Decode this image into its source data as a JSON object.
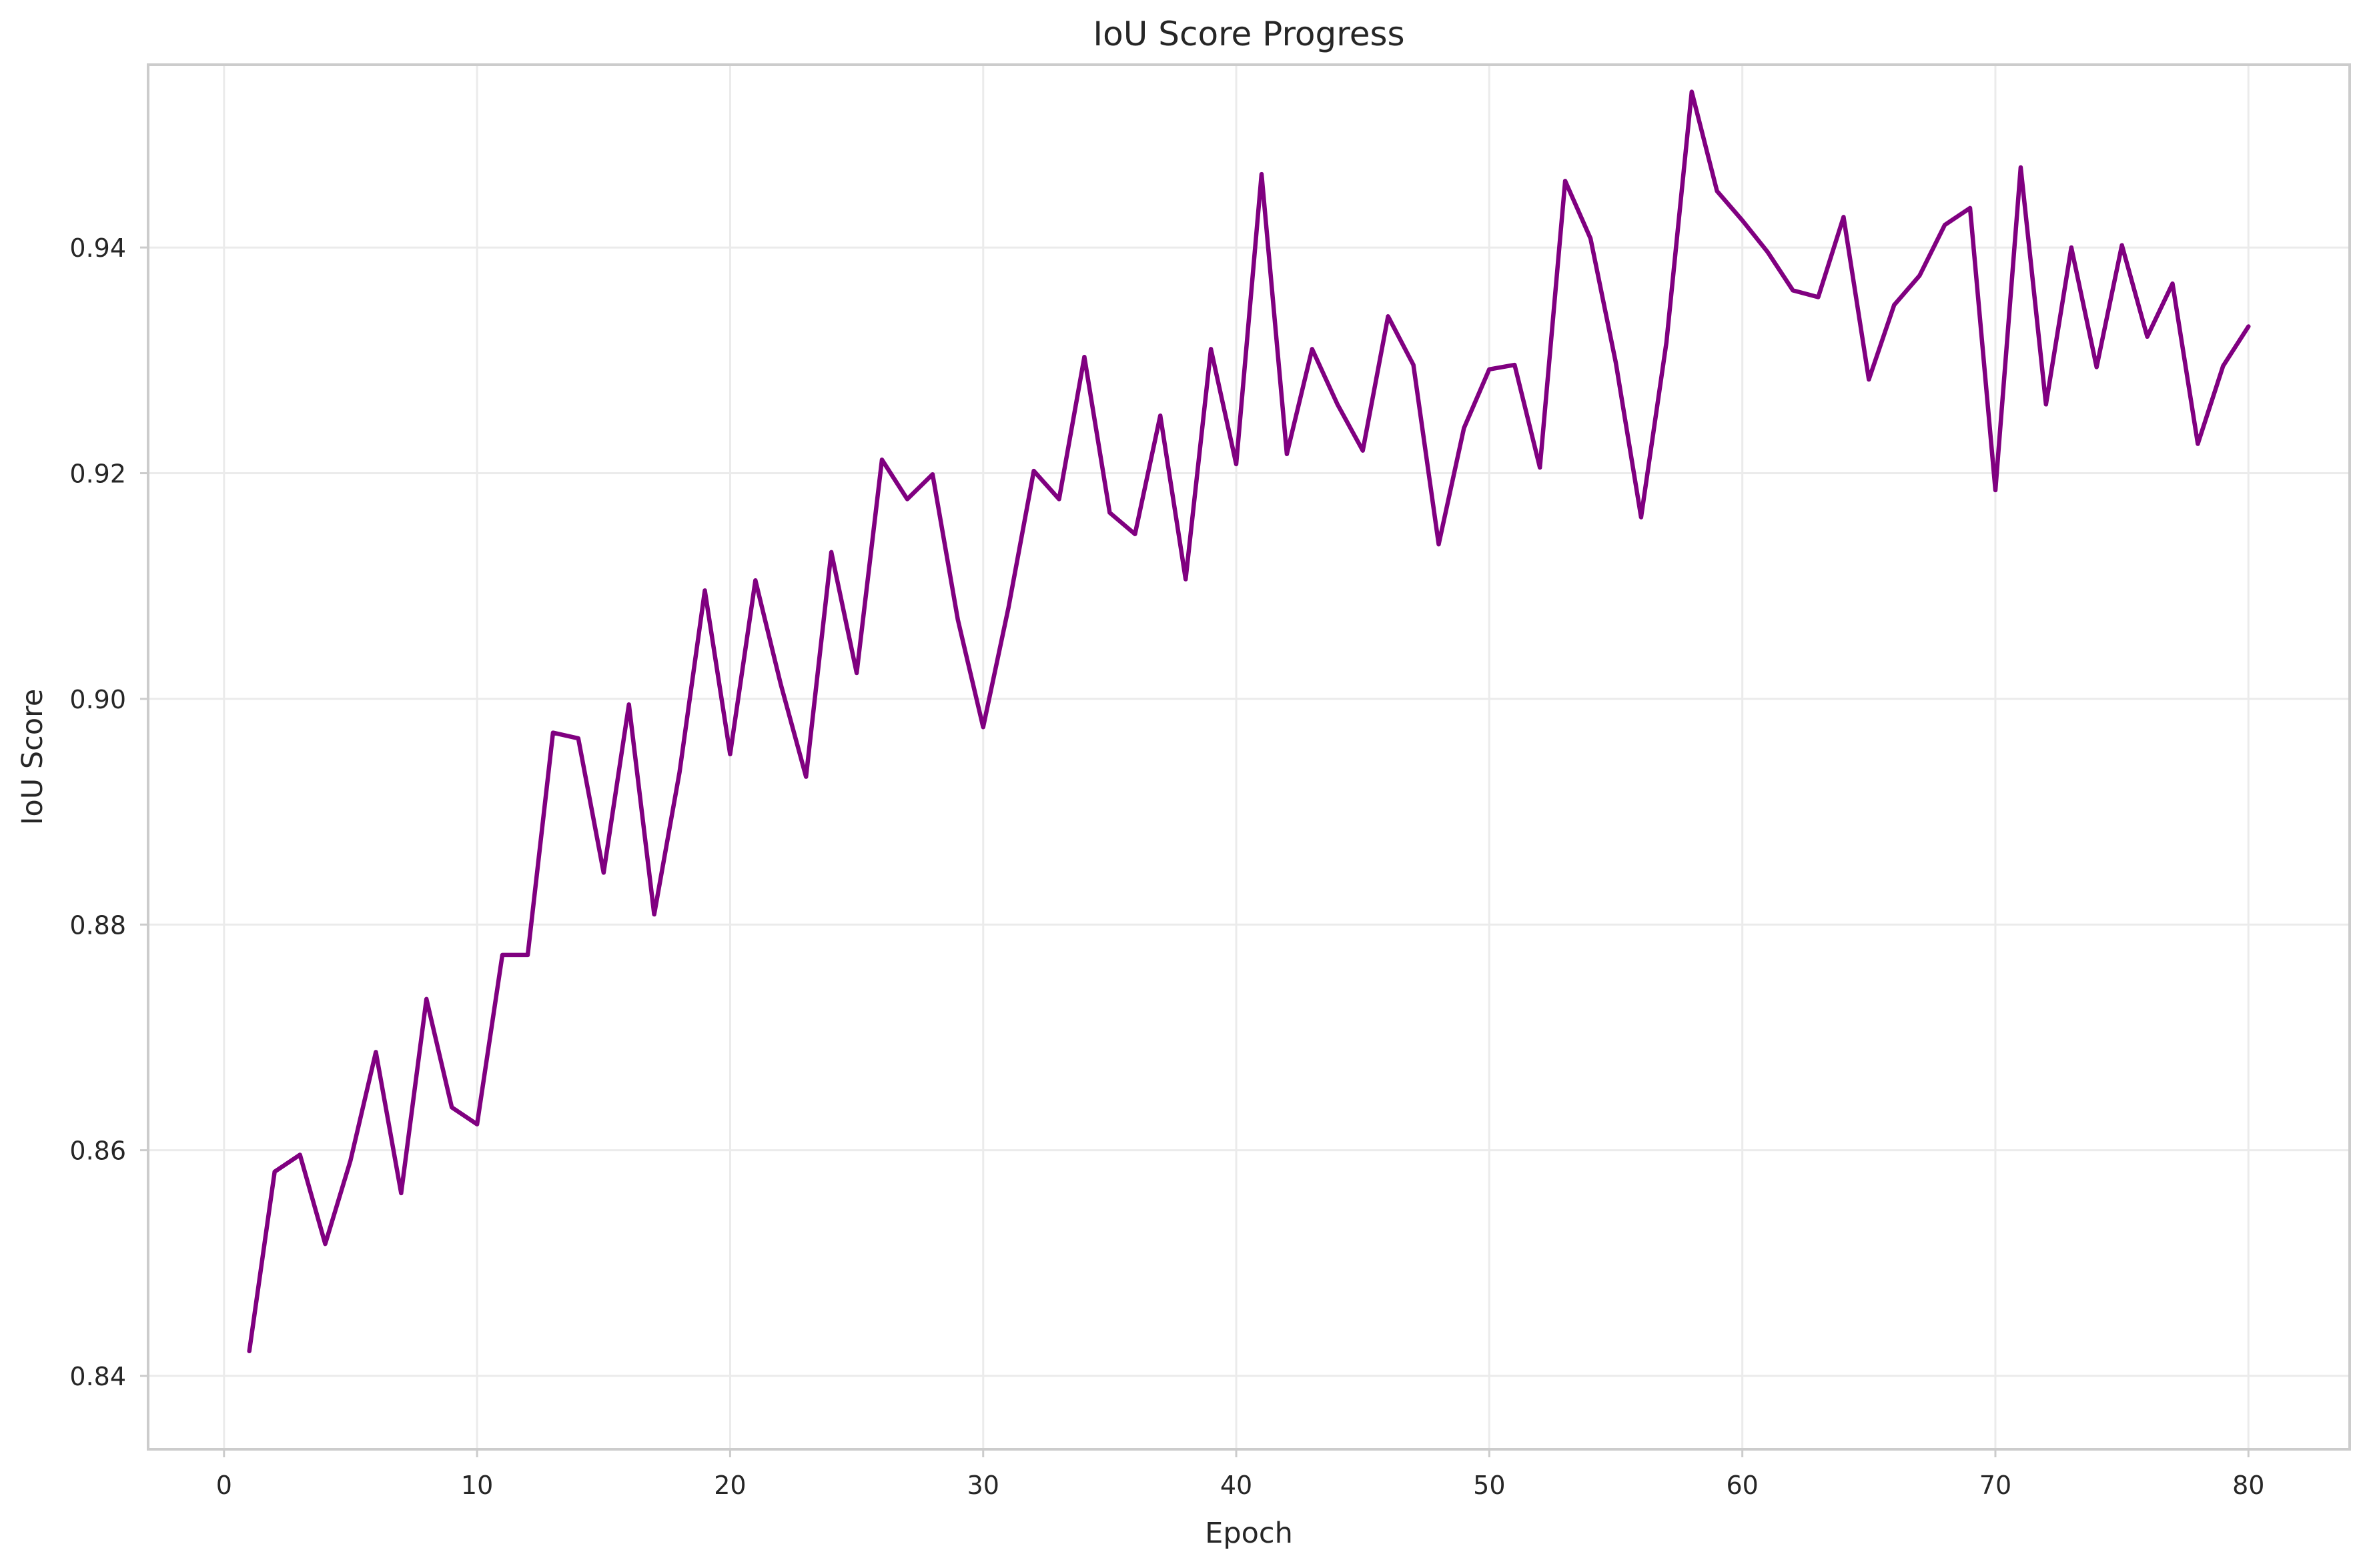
{
  "chart_data": {
    "type": "line",
    "title": "IoU Score Progress",
    "xlabel": "Epoch",
    "ylabel": "IoU Score",
    "xlim": [
      -3,
      84
    ],
    "ylim": [
      0.8335,
      0.9562
    ],
    "xticks": [
      0,
      10,
      20,
      30,
      40,
      50,
      60,
      70,
      80
    ],
    "xtick_labels": [
      "0",
      "10",
      "20",
      "30",
      "40",
      "50",
      "60",
      "70",
      "80"
    ],
    "yticks": [
      0.84,
      0.86,
      0.88,
      0.9,
      0.92,
      0.94
    ],
    "ytick_labels": [
      "0.84",
      "0.86",
      "0.88",
      "0.90",
      "0.92",
      "0.94"
    ],
    "grid": true,
    "legend": false,
    "series": [
      {
        "name": "IoU Score",
        "color": "#800080",
        "x": [
          1,
          2,
          3,
          4,
          5,
          6,
          7,
          8,
          9,
          10,
          11,
          12,
          13,
          14,
          15,
          16,
          17,
          18,
          19,
          20,
          21,
          22,
          23,
          24,
          25,
          26,
          27,
          28,
          29,
          30,
          31,
          32,
          33,
          34,
          35,
          36,
          37,
          38,
          39,
          40,
          41,
          42,
          43,
          44,
          45,
          46,
          47,
          48,
          49,
          50,
          51,
          52,
          53,
          54,
          55,
          56,
          57,
          58,
          59,
          60,
          61,
          62,
          63,
          64,
          65,
          66,
          67,
          68,
          69,
          70,
          71,
          72,
          73,
          74,
          75,
          76,
          77,
          78,
          79,
          80
        ],
        "values": [
          0.8422,
          0.8581,
          0.8596,
          0.8517,
          0.8591,
          0.8687,
          0.8562,
          0.8734,
          0.8638,
          0.8623,
          0.8773,
          0.8773,
          0.897,
          0.8965,
          0.8846,
          0.8995,
          0.8809,
          0.8935,
          0.9096,
          0.8951,
          0.9105,
          0.9013,
          0.8931,
          0.913,
          0.9023,
          0.9212,
          0.9177,
          0.9199,
          0.907,
          0.8975,
          0.9081,
          0.9202,
          0.9177,
          0.9303,
          0.9165,
          0.9146,
          0.9251,
          0.9106,
          0.931,
          0.9208,
          0.9465,
          0.9217,
          0.931,
          0.9261,
          0.922,
          0.9339,
          0.9296,
          0.9137,
          0.924,
          0.9292,
          0.9296,
          0.9205,
          0.9459,
          0.9408,
          0.9298,
          0.9161,
          0.9316,
          0.9538,
          0.945,
          0.9424,
          0.9396,
          0.9362,
          0.9356,
          0.9427,
          0.9283,
          0.9349,
          0.9375,
          0.942,
          0.9435,
          0.9185,
          0.9471,
          0.9261,
          0.94,
          0.9294,
          0.9402,
          0.9321,
          0.9368,
          0.9226,
          0.9295,
          0.933
        ]
      }
    ]
  }
}
